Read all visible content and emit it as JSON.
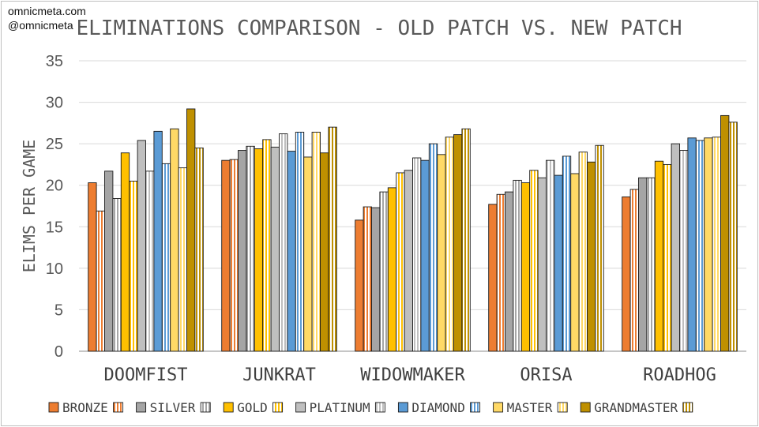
{
  "watermark": {
    "line1": "omnicmeta.com",
    "line2": "@omnicmeta"
  },
  "chart_data": {
    "type": "bar",
    "title": "ELIMINATIONS COMPARISON - OLD PATCH VS. NEW PATCH",
    "xlabel": "",
    "ylabel": "ELIMS PER GAME",
    "ylim": [
      0,
      35
    ],
    "yticks": [
      0,
      5,
      10,
      15,
      20,
      25,
      30,
      35
    ],
    "grid": true,
    "legend_position": "bottom",
    "categories": [
      "DOOMFIST",
      "JUNKRAT",
      "WIDOWMAKER",
      "ORISA",
      "ROADHOG"
    ],
    "series": [
      {
        "name": "BRONZE",
        "pattern": "solid",
        "color": "#ED7D31",
        "values": [
          20.3,
          23.0,
          15.8,
          17.7,
          18.6
        ]
      },
      {
        "name": "",
        "pattern": "striped",
        "color": "#ED7D31",
        "values": [
          16.9,
          23.1,
          17.4,
          18.9,
          19.5
        ]
      },
      {
        "name": "SILVER",
        "pattern": "solid",
        "color": "#A5A5A5",
        "values": [
          21.7,
          24.2,
          17.3,
          19.2,
          20.9
        ]
      },
      {
        "name": "",
        "pattern": "striped",
        "color": "#A5A5A5",
        "values": [
          18.4,
          24.7,
          19.2,
          20.6,
          20.9
        ]
      },
      {
        "name": "GOLD",
        "pattern": "solid",
        "color": "#FFC000",
        "values": [
          23.9,
          24.4,
          19.7,
          20.3,
          22.9
        ]
      },
      {
        "name": "",
        "pattern": "striped",
        "color": "#FFC000",
        "values": [
          20.5,
          25.5,
          21.5,
          21.8,
          22.5
        ]
      },
      {
        "name": "PLATINUM",
        "pattern": "solid",
        "color": "#BFBFBF",
        "values": [
          25.4,
          24.6,
          21.8,
          20.9,
          25.0
        ]
      },
      {
        "name": "",
        "pattern": "striped",
        "color": "#BFBFBF",
        "values": [
          21.7,
          26.2,
          23.3,
          23.0,
          24.2
        ]
      },
      {
        "name": "DIAMOND",
        "pattern": "solid",
        "color": "#5B9BD5",
        "values": [
          26.5,
          24.1,
          23.0,
          21.2,
          25.7
        ]
      },
      {
        "name": "",
        "pattern": "striped",
        "color": "#5B9BD5",
        "values": [
          22.6,
          26.4,
          25.0,
          23.5,
          25.4
        ]
      },
      {
        "name": "MASTER",
        "pattern": "solid",
        "color": "#FFD966",
        "values": [
          26.8,
          23.4,
          23.7,
          21.4,
          25.7
        ]
      },
      {
        "name": "",
        "pattern": "striped",
        "color": "#FFD966",
        "values": [
          22.1,
          26.4,
          25.8,
          24.0,
          25.8
        ]
      },
      {
        "name": "GRANDMASTER",
        "pattern": "solid",
        "color": "#BF9000",
        "values": [
          29.2,
          23.9,
          26.1,
          22.8,
          28.4
        ]
      },
      {
        "name": "",
        "pattern": "striped",
        "color": "#BF9000",
        "values": [
          24.5,
          27.0,
          26.8,
          24.8,
          27.6
        ]
      }
    ]
  }
}
